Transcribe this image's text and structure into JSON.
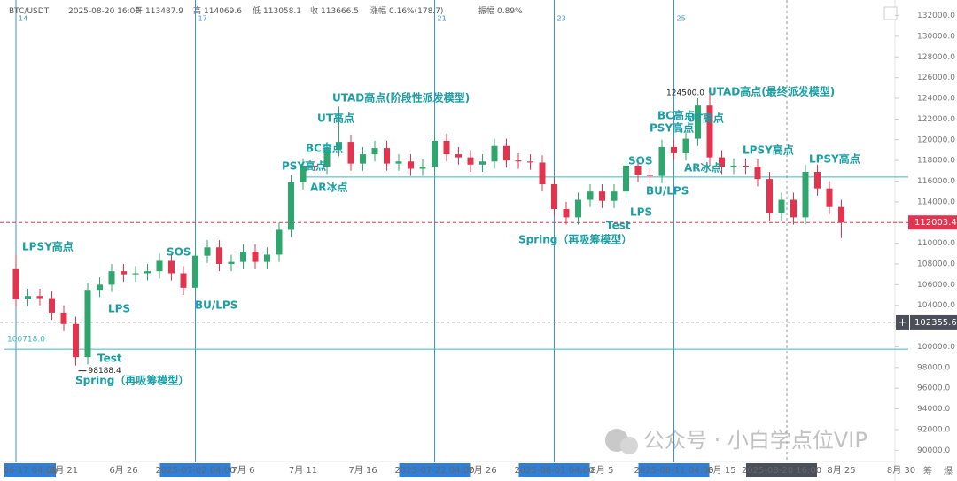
{
  "chart_data": {
    "type": "candlestick",
    "header": {
      "symbol": "BTC/USDT",
      "time": "2025-08-20 16:00",
      "open_label": "开",
      "open": 113487.9,
      "high_label": "高",
      "high": 114069.6,
      "low_label": "低",
      "low": 113058.1,
      "close_label": "收",
      "close": 113666.5,
      "change_label": "涨幅",
      "change": "0.16%(178.7)",
      "amplitude_label": "振幅",
      "amplitude": "0.89%"
    },
    "x": [
      "2025-06-17",
      "2025-06-18",
      "2025-06-19",
      "2025-06-20",
      "2025-06-21",
      "2025-06-22",
      "2025-06-23",
      "2025-06-24",
      "2025-06-25",
      "2025-06-26",
      "2025-06-27",
      "2025-06-28",
      "2025-06-29",
      "2025-06-30",
      "2025-07-01",
      "2025-07-02",
      "2025-07-03",
      "2025-07-04",
      "2025-07-05",
      "2025-07-06",
      "2025-07-07",
      "2025-07-08",
      "2025-07-09",
      "2025-07-10",
      "2025-07-11",
      "2025-07-12",
      "2025-07-13",
      "2025-07-14",
      "2025-07-15",
      "2025-07-16",
      "2025-07-17",
      "2025-07-18",
      "2025-07-19",
      "2025-07-20",
      "2025-07-21",
      "2025-07-22",
      "2025-07-23",
      "2025-07-24",
      "2025-07-25",
      "2025-07-26",
      "2025-07-27",
      "2025-07-28",
      "2025-07-29",
      "2025-07-30",
      "2025-07-31",
      "2025-08-01",
      "2025-08-02",
      "2025-08-03",
      "2025-08-04",
      "2025-08-05",
      "2025-08-06",
      "2025-08-07",
      "2025-08-08",
      "2025-08-09",
      "2025-08-10",
      "2025-08-11",
      "2025-08-12",
      "2025-08-13",
      "2025-08-14",
      "2025-08-15",
      "2025-08-16",
      "2025-08-17",
      "2025-08-18",
      "2025-08-19",
      "2025-08-20",
      "2025-08-21",
      "2025-08-22",
      "2025-08-23",
      "2025-08-24",
      "2025-08-25"
    ],
    "open": [
      107500,
      104600,
      104900,
      104700,
      103300,
      102200,
      99000,
      105500,
      106000,
      107300,
      107000,
      107100,
      107300,
      108300,
      107100,
      105700,
      108800,
      109600,
      108000,
      108200,
      109200,
      108200,
      108900,
      111300,
      115900,
      117500,
      117400,
      119100,
      119800,
      117700,
      118600,
      119200,
      117700,
      117900,
      117200,
      117400,
      119900,
      118600,
      118300,
      117600,
      117900,
      119400,
      118000,
      117900,
      117800,
      115700,
      113300,
      112500,
      114200,
      115000,
      114100,
      115000,
      117500,
      116600,
      116500,
      119300,
      118700,
      120100,
      123300,
      118300,
      117400,
      117500,
      117400,
      116200,
      112900,
      114200,
      112500,
      116900,
      115300,
      113500
    ],
    "high": [
      108900,
      105600,
      105600,
      105400,
      104000,
      102900,
      106200,
      106700,
      108000,
      108000,
      107800,
      108000,
      109000,
      109000,
      107800,
      109500,
      110300,
      110300,
      108900,
      109900,
      109900,
      109600,
      112000,
      116600,
      118200,
      118200,
      119800,
      123200,
      120500,
      119300,
      119900,
      119900,
      118600,
      118600,
      118100,
      120600,
      120600,
      119300,
      119000,
      118600,
      120100,
      120100,
      118700,
      118600,
      118500,
      116400,
      114000,
      114900,
      115700,
      115700,
      115700,
      118200,
      118200,
      117300,
      120000,
      120000,
      120800,
      124000,
      124500,
      119000,
      118200,
      118200,
      118100,
      116900,
      114900,
      114900,
      117600,
      117600,
      116000,
      114200
    ],
    "low": [
      103900,
      103900,
      104000,
      102600,
      101500,
      98188.4,
      98300,
      104800,
      105300,
      106300,
      106300,
      106400,
      106600,
      106400,
      105000,
      105000,
      108100,
      107300,
      107300,
      107500,
      107500,
      107500,
      108200,
      110600,
      115200,
      116700,
      116700,
      118400,
      117000,
      117000,
      117900,
      117000,
      117000,
      116500,
      116500,
      116700,
      117900,
      117600,
      116900,
      116900,
      117200,
      117300,
      117200,
      117100,
      115000,
      112600,
      111800,
      111800,
      113500,
      113400,
      113400,
      114300,
      115900,
      115800,
      115800,
      118000,
      118000,
      119400,
      117600,
      116700,
      116700,
      116700,
      115500,
      112200,
      112200,
      111800,
      111800,
      114600,
      112800,
      110500
    ],
    "close": [
      104600,
      104900,
      104700,
      103300,
      102200,
      99000,
      105500,
      106000,
      107300,
      107000,
      107100,
      107300,
      108300,
      107100,
      105700,
      108800,
      109600,
      108000,
      108200,
      109200,
      108200,
      108900,
      111300,
      115900,
      117500,
      117400,
      119100,
      119800,
      117700,
      118600,
      119200,
      117700,
      117900,
      117200,
      117400,
      119900,
      118600,
      118300,
      117600,
      117900,
      119400,
      118000,
      117900,
      117800,
      115700,
      113300,
      112500,
      114200,
      115000,
      114100,
      115000,
      117500,
      116600,
      116500,
      119300,
      118700,
      120100,
      123300,
      118300,
      117400,
      117500,
      117400,
      116200,
      112900,
      114200,
      112500,
      116900,
      115300,
      113500,
      112003.4
    ],
    "up_color": "#2ea66d",
    "down_color": "#e2344f",
    "ylim": [
      89000,
      133500
    ],
    "yticks": [
      {
        "value": 90000,
        "label": "90000.0"
      },
      {
        "value": 92000,
        "label": "92000.0"
      },
      {
        "value": 94000,
        "label": "94000.0"
      },
      {
        "value": 96000,
        "label": "96000.0"
      },
      {
        "value": 98000,
        "label": "98000.0"
      },
      {
        "value": 100000,
        "label": "100000.0"
      },
      {
        "value": 102000,
        "label": "102000.0"
      },
      {
        "value": 104000,
        "label": "104000.0"
      },
      {
        "value": 106000,
        "label": "106000.0"
      },
      {
        "value": 108000,
        "label": "108000.0"
      },
      {
        "value": 110000,
        "label": "110000.0"
      },
      {
        "value": 112000,
        "label": "112000.0"
      },
      {
        "value": 114000,
        "label": "114000.0"
      },
      {
        "value": 116000,
        "label": "116000.0"
      },
      {
        "value": 118000,
        "label": "118000.0"
      },
      {
        "value": 120000,
        "label": "120000.0"
      },
      {
        "value": 122000,
        "label": "122000.0"
      },
      {
        "value": 124000,
        "label": "124000.0"
      },
      {
        "value": 126000,
        "label": "126000.0"
      },
      {
        "value": 128000,
        "label": "128000.0"
      },
      {
        "value": 130000,
        "label": "130000.0"
      },
      {
        "value": 132000,
        "label": "132000.0"
      }
    ],
    "xtick_labels": [
      "06-17 04:00",
      "6月 21",
      "6月 26",
      "2025-07-02 04:00",
      "7月 6",
      "7月 11",
      "7月 16",
      "2025-07-22 04:00",
      "7月 26",
      "2025-08-01 04:00",
      "8月 5",
      "2025-08-11 04:00",
      "8月 15",
      "2025-08-20 16:00",
      "8月 25",
      "8月 30"
    ],
    "vline_labels": [
      "14",
      "17",
      "21",
      "23",
      "25"
    ],
    "resistance_line": 116400,
    "support_line": {
      "value": 100718,
      "label": "100718.0"
    },
    "crosshair_price": 102355.6,
    "low_marker": "98188.4",
    "high_marker": "124500.0",
    "annotations": [
      "LPSY高点",
      "Spring（再吸筹模型）",
      "Test",
      "LPS",
      "SOS",
      "BU/LPS",
      "PSY高点",
      "BC高点",
      "AR冰点",
      "UT高点",
      "UTAD高点(阶段性派发模型)",
      "Spring（再吸筹模型）",
      "Test",
      "LPS",
      "SOS",
      "BU/LPS",
      "PSY高点",
      "BC高点",
      "UT高点",
      "AR冰点",
      "UTAD高点(最终派发模型)",
      "LPSY高点",
      "LPSY高点"
    ],
    "watermark": "公众号 · 小白学点位VIP",
    "side_buttons": [
      "筹",
      "爆"
    ]
  }
}
